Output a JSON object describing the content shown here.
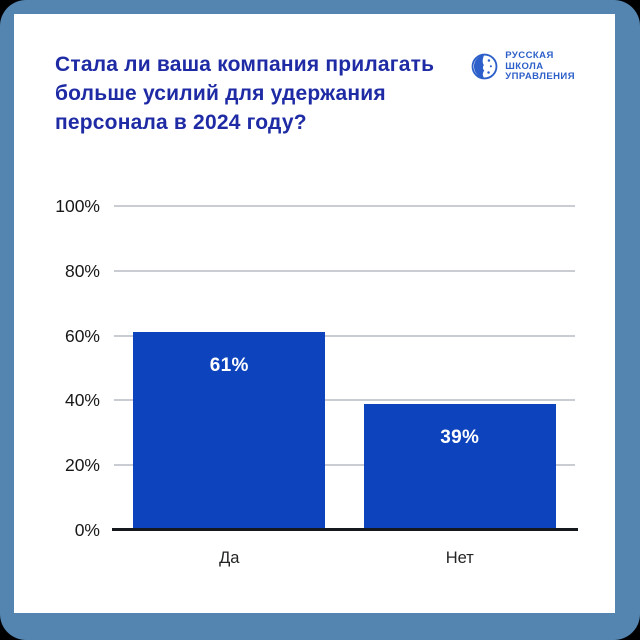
{
  "title": {
    "full": "Стала ли ваша компания прилагать больше усилий для удержания персонала в 2024 году?",
    "lines": [
      "Стала ли ваша компания прилагать",
      "больше усилий для удержания",
      "персонала в 2024 году?"
    ]
  },
  "logo": {
    "name": "Русская Школа Управления",
    "lines": [
      "РУССКАЯ",
      "ШКОЛА",
      "УПРАВЛЕНИЯ"
    ]
  },
  "colors": {
    "frame": "#5484B0",
    "card": "#FFFFFF",
    "title": "#1E2BA5",
    "bar": "#0D43BC",
    "logo": "#2C5FC9",
    "gridline": "#C9CDD3",
    "axis": "#15181C"
  },
  "chart_data": {
    "type": "bar",
    "title": "Стала ли ваша компания прилагать больше усилий для удержания персонала в 2024 году?",
    "categories": [
      "Да",
      "Нет"
    ],
    "values": [
      61,
      39
    ],
    "value_labels": [
      "61%",
      "39%"
    ],
    "yticks": [
      0,
      20,
      40,
      60,
      80,
      100
    ],
    "ytick_labels": [
      "0%",
      "20%",
      "40%",
      "60%",
      "80%",
      "100%"
    ],
    "ylim": [
      0,
      100
    ],
    "grid": true,
    "legend": false,
    "bar_color": "#0D43BC",
    "xlabel": "",
    "ylabel": ""
  }
}
